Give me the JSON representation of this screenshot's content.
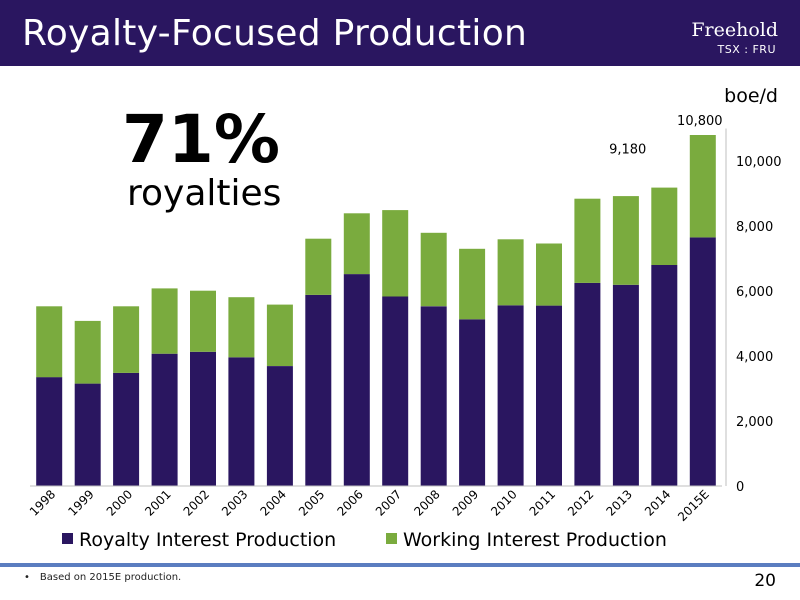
{
  "header": {
    "title": "Royalty-Focused Production",
    "brand": "Freehold",
    "ticker": "TSX : FRU"
  },
  "highlight": {
    "percent": "71%",
    "label": "royalties"
  },
  "footer": {
    "bullet": "•",
    "note": "Based on 2015E production.",
    "page_number": "20"
  },
  "colors": {
    "royalty": "#2a1660",
    "working": "#7aab3e",
    "header": "#2a1660",
    "rule": "#5b7dc0"
  },
  "chart_data": {
    "type": "bar",
    "stacked": true,
    "unit_label": "boe/d",
    "categories": [
      "1998",
      "1999",
      "2000",
      "2001",
      "2002",
      "2003",
      "2004",
      "2005",
      "2006",
      "2007",
      "2008",
      "2009",
      "2010",
      "2011",
      "2012",
      "2013",
      "2014",
      "2015E"
    ],
    "series": [
      {
        "name": "Royalty Interest Production",
        "values": [
          3350,
          3150,
          3480,
          4070,
          4130,
          3960,
          3690,
          5880,
          6520,
          5830,
          5530,
          5130,
          5560,
          5550,
          6250,
          6190,
          6800,
          7650
        ]
      },
      {
        "name": "Working Interest Production",
        "values": [
          2180,
          1930,
          2050,
          2010,
          1880,
          1850,
          1890,
          1730,
          1870,
          2660,
          2260,
          2170,
          2030,
          1910,
          2590,
          2730,
          2380,
          3150
        ]
      }
    ],
    "data_labels": [
      {
        "category": "2014",
        "text": "9,180"
      },
      {
        "category": "2015E",
        "text": "10,800"
      }
    ],
    "y_ticks": [
      "0",
      "2,000",
      "4,000",
      "6,000",
      "8,000",
      "10,000"
    ],
    "y_tick_values": [
      0,
      2000,
      4000,
      6000,
      8000,
      10000
    ],
    "ylim": [
      0,
      11000
    ],
    "y_axis_side": "right",
    "legend_position": "bottom",
    "grid": false
  }
}
